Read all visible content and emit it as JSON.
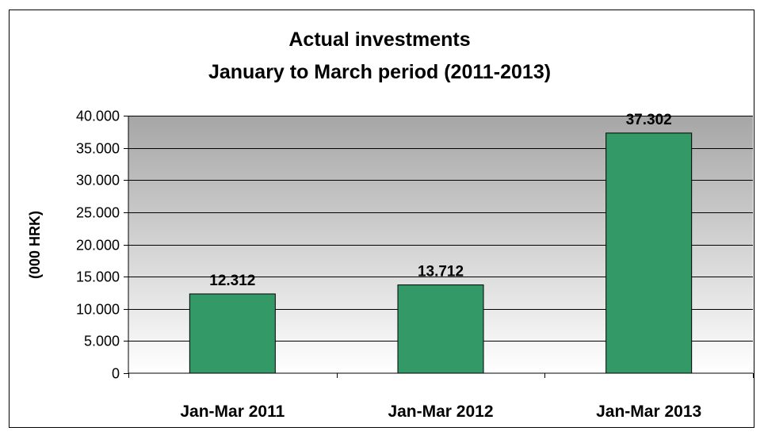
{
  "chart_data": {
    "type": "bar",
    "title": [
      "Actual investments",
      "January to March period (2011-2013)"
    ],
    "xlabel": "",
    "ylabel": "(000 HRK)",
    "categories": [
      "Jan-Mar 2011",
      "Jan-Mar 2012",
      "Jan-Mar 2013"
    ],
    "values": [
      12312,
      13712,
      37302
    ],
    "data_labels": [
      "12.312",
      "13.712",
      "37.302"
    ],
    "ylim": [
      0,
      40000
    ],
    "yticks": [
      0,
      5000,
      10000,
      15000,
      20000,
      25000,
      30000,
      35000,
      40000
    ],
    "ytick_labels": [
      "0",
      "5.000",
      "10.000",
      "15.000",
      "20.000",
      "25.000",
      "30.000",
      "35.000",
      "40.000"
    ],
    "grid": true,
    "legend": "none",
    "colors": {
      "bar": "#339966",
      "bar_border": "#000000",
      "plot_bg_top": "#a6a6a6",
      "plot_bg_bottom": "#ffffff",
      "gridline": "#000000"
    }
  }
}
